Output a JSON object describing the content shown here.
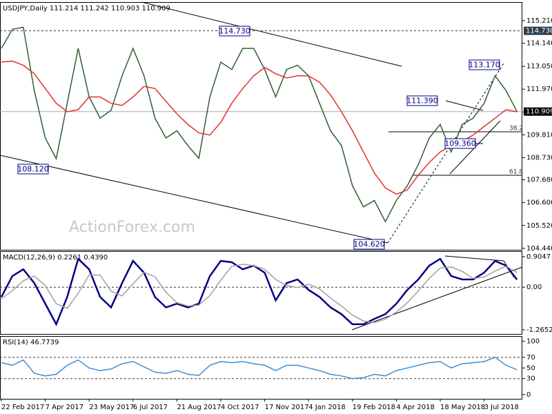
{
  "chart_data": [
    {
      "type": "line",
      "title": "USDJPY,Daily 111.214 111.242 110.903 110.909",
      "watermark": "ActionForex.com",
      "categories": [
        "22 Feb 2017",
        null,
        null,
        null,
        "7 Apr 2017",
        null,
        null,
        null,
        "23 May 2017",
        null,
        null,
        null,
        "6 Jul 2017",
        null,
        null,
        null,
        "21 Aug 2017",
        null,
        null,
        null,
        "4 Oct 2017",
        null,
        null,
        null,
        "17 Nov 2017",
        null,
        null,
        null,
        "4 Jan 2018",
        null,
        null,
        null,
        "19 Feb 2018",
        null,
        null,
        null,
        "4 Apr 2018",
        null,
        null,
        null,
        "18 May 2018",
        null,
        null,
        null,
        "3 Jul 2018",
        null,
        null,
        null
      ],
      "series": [
        {
          "color": "#2f5f2f",
          "values": [
            113.9,
            114.8,
            114.9,
            111.9,
            109.66,
            108.68,
            111.3,
            113.9,
            111.6,
            110.6,
            110.97,
            112.6,
            113.9,
            112.6,
            110.6,
            109.66,
            110.0,
            109.3,
            108.7,
            111.6,
            113.25,
            112.9,
            113.9,
            113.9,
            112.9,
            111.6,
            112.9,
            113.1,
            112.6,
            111.3,
            110.0,
            109.3,
            107.4,
            106.4,
            106.7,
            105.7,
            106.7,
            107.4,
            108.4,
            109.66,
            110.3,
            109.0,
            110.3,
            110.6,
            111.3,
            112.6,
            111.9,
            110.909
          ]
        },
        {
          "color": "#e0302a",
          "values": [
            113.25,
            113.3,
            113.1,
            112.7,
            112.0,
            111.3,
            110.9,
            111.0,
            111.6,
            111.6,
            111.3,
            111.2,
            111.6,
            112.1,
            112.0,
            111.4,
            110.8,
            110.3,
            109.9,
            109.8,
            110.4,
            111.3,
            112.0,
            112.6,
            113.0,
            112.7,
            112.5,
            112.6,
            112.6,
            112.3,
            111.7,
            110.9,
            110.0,
            109.0,
            108.0,
            107.3,
            107.0,
            107.2,
            107.9,
            108.5,
            109.0,
            109.3,
            109.5,
            109.8,
            110.2,
            110.6,
            111.0,
            110.9
          ]
        }
      ],
      "ylim": [
        104.37,
        116.09
      ],
      "yticks": [
        {
          "value": 115.21,
          "label": "115.210"
        },
        {
          "value": 114.14,
          "label": "114.140"
        },
        {
          "value": 113.05,
          "label": "113.050"
        },
        {
          "value": 111.97,
          "label": "111.970"
        },
        {
          "value": 110.89,
          "label": "110.890"
        },
        {
          "value": 109.81,
          "label": "109.810"
        },
        {
          "value": 108.73,
          "label": "108.730"
        },
        {
          "value": 107.68,
          "label": "107.680"
        },
        {
          "value": 106.6,
          "label": "106.600"
        },
        {
          "value": 105.52,
          "label": "105.520"
        },
        {
          "value": 104.44,
          "label": "104.440"
        }
      ],
      "levels": [
        {
          "value": 114.73,
          "label": "114.730"
        }
      ],
      "last_price": 110.909,
      "annotations": [
        "114.730",
        "108.120",
        "104.620",
        "111.390",
        "109.360",
        "113.170",
        "38.2",
        "61.8"
      ]
    },
    {
      "type": "line",
      "title": "MACD(12,26,9) 0.2261 0.4390",
      "series": [
        {
          "color": "#000080",
          "values": [
            -0.29,
            0.33,
            0.53,
            0.12,
            -0.49,
            -1.1,
            -0.29,
            0.84,
            0.53,
            -0.29,
            -0.6,
            0.12,
            0.78,
            0.43,
            -0.29,
            -0.6,
            -0.49,
            -0.6,
            -0.49,
            0.33,
            0.78,
            0.74,
            0.53,
            0.64,
            0.43,
            -0.39,
            0.12,
            0.23,
            -0.08,
            -0.29,
            -0.6,
            -0.8,
            -1.1,
            -1.1,
            -0.94,
            -0.8,
            -0.49,
            -0.08,
            0.23,
            0.64,
            0.84,
            0.33,
            0.23,
            0.23,
            0.43,
            0.78,
            0.64,
            0.2261
          ]
        },
        {
          "color": "#a0a0a0",
          "values": [
            -0.35,
            -0.1,
            0.19,
            0.33,
            0.05,
            -0.49,
            -0.63,
            -0.18,
            0.36,
            0.36,
            -0.12,
            -0.26,
            0.1,
            0.44,
            0.31,
            -0.15,
            -0.46,
            -0.56,
            -0.53,
            -0.25,
            0.21,
            0.62,
            0.68,
            0.64,
            0.53,
            0.23,
            0.05,
            -0.01,
            0.09,
            -0.05,
            -0.32,
            -0.56,
            -0.83,
            -1.0,
            -1.05,
            -0.95,
            -0.74,
            -0.46,
            -0.11,
            0.26,
            0.57,
            0.6,
            0.47,
            0.26,
            0.3,
            0.48,
            0.62,
            0.439
          ]
        }
      ],
      "ylim": [
        -1.388,
        1.069
      ],
      "yticks": [
        0.9047,
        {
          "value": 0,
          "label": "0.00"
        },
        -1.2652
      ],
      "levels": [
        0
      ]
    },
    {
      "type": "line",
      "title": "RSI(14) 46.7739",
      "series": [
        {
          "color": "#3b8fd8",
          "values": [
            60,
            55,
            65,
            40,
            35,
            38,
            55,
            65,
            50,
            45,
            48,
            58,
            62,
            52,
            42,
            40,
            45,
            38,
            36,
            55,
            62,
            60,
            62,
            58,
            55,
            45,
            55,
            55,
            50,
            45,
            38,
            35,
            30,
            32,
            38,
            35,
            45,
            50,
            55,
            60,
            62,
            50,
            58,
            60,
            62,
            70,
            55,
            46.7739
          ]
        }
      ],
      "ylim": [
        -8,
        110
      ],
      "yticks": [
        100,
        70,
        50,
        30,
        0
      ],
      "levels": [
        70,
        30
      ]
    }
  ]
}
